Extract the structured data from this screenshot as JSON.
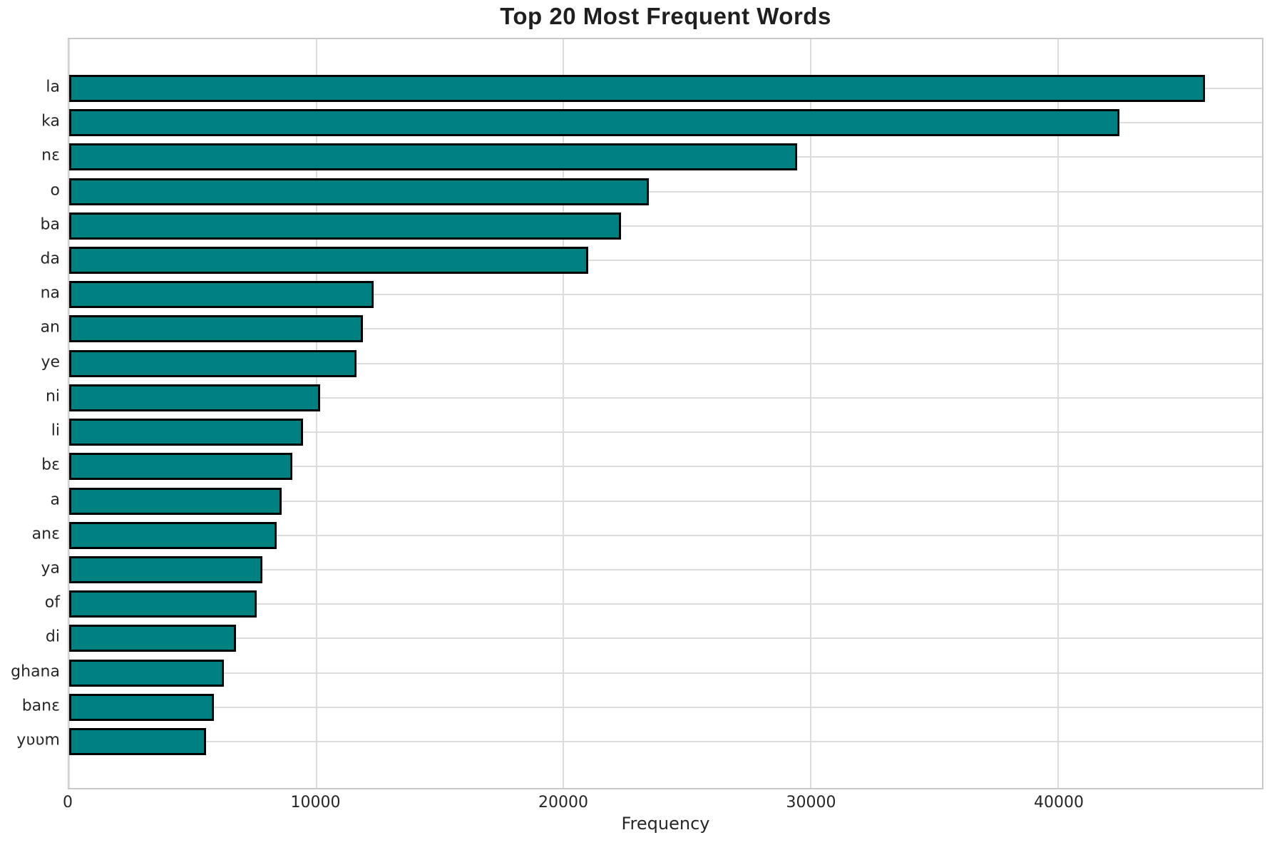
{
  "chart_data": {
    "type": "bar",
    "orientation": "horizontal",
    "title": "Top 20 Most Frequent Words",
    "xlabel": "Frequency",
    "ylabel": "",
    "categories": [
      "la",
      "ka",
      "nɛ",
      "o",
      "ba",
      "da",
      "na",
      "an",
      "ye",
      "ni",
      "li",
      "bɛ",
      "a",
      "anɛ",
      "ya",
      "of",
      "di",
      "ghana",
      "banɛ",
      "yʋʋm"
    ],
    "values": [
      45960,
      42490,
      29440,
      23450,
      22330,
      21010,
      12320,
      11880,
      11630,
      10160,
      9470,
      9040,
      8600,
      8400,
      7830,
      7600,
      6760,
      6270,
      5870,
      5530
    ],
    "xticks": [
      0,
      10000,
      20000,
      30000,
      40000
    ],
    "xtick_labels": [
      "0",
      "10000",
      "20000",
      "30000",
      "40000"
    ],
    "xlim": [
      0,
      48260
    ],
    "grid": true,
    "legend_position": "none",
    "bar_color": "#008080",
    "bar_edge_color": "#000000",
    "grid_color": "#dcdcdc",
    "text_color": "#262626",
    "title_color": "#1f1f1f"
  }
}
